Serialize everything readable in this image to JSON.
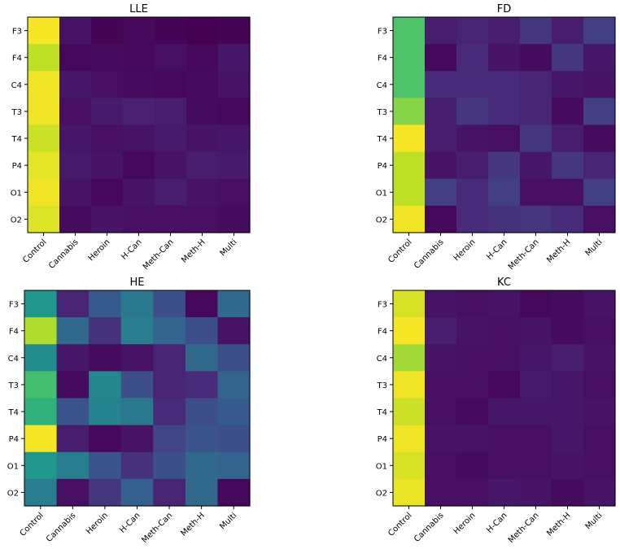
{
  "figure": {
    "background": "#ffffff"
  },
  "colormap": "viridis",
  "chart_data": [
    {
      "type": "heatmap",
      "title": "LLE",
      "rows": [
        "F3",
        "F4",
        "C4",
        "T3",
        "T4",
        "P4",
        "O1",
        "O2"
      ],
      "columns": [
        "Control",
        "Cannabis",
        "Heroin",
        "H-Can",
        "Meth-Can",
        "Meth-H",
        "Multi"
      ],
      "values": [
        [
          0.99,
          0.05,
          0.01,
          0.02,
          0.01,
          0.0,
          0.01
        ],
        [
          0.9,
          0.02,
          0.03,
          0.02,
          0.04,
          0.02,
          0.06
        ],
        [
          0.98,
          0.06,
          0.04,
          0.03,
          0.02,
          0.03,
          0.05
        ],
        [
          0.98,
          0.04,
          0.07,
          0.09,
          0.08,
          0.03,
          0.02
        ],
        [
          0.92,
          0.06,
          0.04,
          0.05,
          0.07,
          0.05,
          0.06
        ],
        [
          0.96,
          0.07,
          0.05,
          0.02,
          0.05,
          0.08,
          0.07
        ],
        [
          0.98,
          0.05,
          0.02,
          0.05,
          0.08,
          0.05,
          0.04
        ],
        [
          0.95,
          0.03,
          0.05,
          0.04,
          0.04,
          0.04,
          0.03
        ]
      ]
    },
    {
      "type": "heatmap",
      "title": "FD",
      "rows": [
        "F3",
        "F4",
        "C4",
        "T3",
        "T4",
        "P4",
        "O1",
        "O2"
      ],
      "columns": [
        "Control",
        "Cannabis",
        "Heroin",
        "H-Can",
        "Meth-Can",
        "Meth-H",
        "Multi"
      ],
      "values": [
        [
          0.72,
          0.08,
          0.1,
          0.08,
          0.16,
          0.08,
          0.18
        ],
        [
          0.72,
          0.02,
          0.12,
          0.05,
          0.03,
          0.16,
          0.06
        ],
        [
          0.72,
          0.12,
          0.12,
          0.12,
          0.1,
          0.06,
          0.05
        ],
        [
          0.82,
          0.08,
          0.16,
          0.12,
          0.1,
          0.03,
          0.18
        ],
        [
          0.99,
          0.08,
          0.05,
          0.04,
          0.16,
          0.08,
          0.03
        ],
        [
          0.9,
          0.05,
          0.08,
          0.16,
          0.06,
          0.16,
          0.1
        ],
        [
          0.9,
          0.18,
          0.12,
          0.18,
          0.04,
          0.04,
          0.18
        ],
        [
          0.98,
          0.02,
          0.12,
          0.14,
          0.15,
          0.12,
          0.04
        ]
      ]
    },
    {
      "type": "heatmap",
      "title": "HE",
      "rows": [
        "F3",
        "F4",
        "C4",
        "T3",
        "T4",
        "P4",
        "O1",
        "O2"
      ],
      "columns": [
        "Control",
        "Cannabis",
        "Heroin",
        "H-Can",
        "Meth-Can",
        "Meth-H",
        "Multi"
      ],
      "values": [
        [
          0.52,
          0.1,
          0.28,
          0.4,
          0.24,
          0.02,
          0.34
        ],
        [
          0.88,
          0.34,
          0.14,
          0.42,
          0.32,
          0.24,
          0.05
        ],
        [
          0.48,
          0.06,
          0.03,
          0.05,
          0.1,
          0.34,
          0.24
        ],
        [
          0.7,
          0.03,
          0.46,
          0.24,
          0.1,
          0.12,
          0.32
        ],
        [
          0.64,
          0.26,
          0.44,
          0.4,
          0.12,
          0.24,
          0.28
        ],
        [
          0.99,
          0.08,
          0.02,
          0.05,
          0.2,
          0.26,
          0.24
        ],
        [
          0.52,
          0.42,
          0.26,
          0.14,
          0.24,
          0.34,
          0.32
        ],
        [
          0.42,
          0.04,
          0.16,
          0.3,
          0.1,
          0.34,
          0.02
        ]
      ]
    },
    {
      "type": "heatmap",
      "title": "KC",
      "rows": [
        "F3",
        "F4",
        "C4",
        "T3",
        "T4",
        "P4",
        "O1",
        "O2"
      ],
      "columns": [
        "Control",
        "Cannabis",
        "Heroin",
        "H-Can",
        "Meth-Can",
        "Meth-H",
        "Multi"
      ],
      "values": [
        [
          0.94,
          0.05,
          0.04,
          0.05,
          0.02,
          0.03,
          0.05
        ],
        [
          0.99,
          0.08,
          0.05,
          0.04,
          0.05,
          0.03,
          0.04
        ],
        [
          0.86,
          0.05,
          0.04,
          0.04,
          0.06,
          0.08,
          0.05
        ],
        [
          0.98,
          0.04,
          0.04,
          0.02,
          0.07,
          0.06,
          0.04
        ],
        [
          0.92,
          0.04,
          0.03,
          0.06,
          0.06,
          0.06,
          0.05
        ],
        [
          0.98,
          0.05,
          0.05,
          0.04,
          0.04,
          0.06,
          0.04
        ],
        [
          0.94,
          0.04,
          0.03,
          0.04,
          0.04,
          0.05,
          0.04
        ],
        [
          0.97,
          0.04,
          0.04,
          0.06,
          0.05,
          0.03,
          0.05
        ]
      ]
    }
  ]
}
